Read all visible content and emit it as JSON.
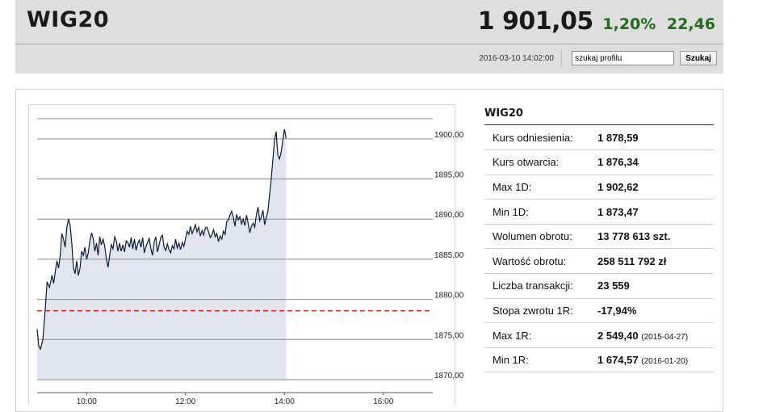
{
  "header": {
    "title": "WIG20",
    "value": "1 901,05",
    "change_pct": "1,20%",
    "change_abs": "22,46",
    "datetime": "2016-03-10 14:02:00",
    "search_placeholder": "szukaj profilu",
    "search_button": "Szukaj"
  },
  "info": {
    "title": "WIG20",
    "rows": [
      {
        "label": "Kurs odniesienia:",
        "value": "1 878,59",
        "date": ""
      },
      {
        "label": "Kurs otwarcia:",
        "value": "1 876,34",
        "date": ""
      },
      {
        "label": "Max 1D:",
        "value": "1 902,62",
        "date": ""
      },
      {
        "label": "Min 1D:",
        "value": "1 873,47",
        "date": ""
      },
      {
        "label": "Wolumen obrotu:",
        "value": "13 778 613 szt.",
        "date": ""
      },
      {
        "label": "Wartość obrotu:",
        "value": "258 511 792 zł",
        "date": ""
      },
      {
        "label": "Liczba transakcji:",
        "value": "23 559",
        "date": ""
      },
      {
        "label": "Stopa zwrotu 1R:",
        "value": "-17,94%",
        "date": ""
      },
      {
        "label": "Max 1R:",
        "value": "2 549,40",
        "date": "(2015-04-27)"
      },
      {
        "label": "Min 1R:",
        "value": "1 674,57",
        "date": "(2016-01-20)"
      }
    ]
  },
  "colors": {
    "positive": "#1f6d1a",
    "line": "#0d1b33",
    "area": "#e2e5ee",
    "reference": "#e02020"
  },
  "chart_data": {
    "type": "area",
    "x_ticks": [
      "10:00",
      "12:00",
      "14:00",
      "16:00"
    ],
    "y_ticks": [
      "1900,00",
      "1895,00",
      "1890,00",
      "1885,00",
      "1880,00",
      "1875,00",
      "1870,00"
    ],
    "ylim": [
      1870,
      1902.5
    ],
    "xlim_minutes": [
      540,
      1020
    ],
    "reference_line": 1878.59,
    "grid": true,
    "x_minutes": [
      540,
      542,
      544,
      547,
      550,
      552,
      555,
      558,
      560,
      562,
      564,
      566,
      568,
      570,
      572,
      574,
      576,
      578,
      580,
      582,
      584,
      586,
      588,
      590,
      592,
      594,
      596,
      598,
      600,
      602,
      604,
      606,
      608,
      610,
      612,
      614,
      616,
      618,
      620,
      622,
      624,
      626,
      628,
      630,
      632,
      634,
      636,
      638,
      640,
      642,
      644,
      646,
      648,
      650,
      652,
      654,
      656,
      658,
      660,
      662,
      664,
      666,
      668,
      670,
      672,
      674,
      676,
      678,
      680,
      682,
      684,
      686,
      688,
      690,
      692,
      694,
      696,
      698,
      700,
      702,
      704,
      706,
      708,
      710,
      712,
      714,
      716,
      718,
      720,
      722,
      724,
      726,
      728,
      730,
      732,
      734,
      736,
      738,
      740,
      742,
      744,
      746,
      748,
      750,
      752,
      754,
      756,
      758,
      760,
      762,
      764,
      766,
      768,
      770,
      772,
      774,
      776,
      778,
      780,
      782,
      784,
      786,
      788,
      790,
      792,
      794,
      796,
      798,
      800,
      802,
      804,
      806,
      808,
      810,
      812,
      814,
      816,
      818,
      820,
      822,
      824,
      826,
      828,
      830,
      832,
      834,
      836,
      838,
      840,
      842
    ],
    "values": [
      1876.3,
      1874.2,
      1873.8,
      1875.0,
      1879.0,
      1882.2,
      1881.5,
      1883.0,
      1882.0,
      1883.5,
      1884.8,
      1883.9,
      1885.5,
      1888.2,
      1887.5,
      1886.5,
      1889.0,
      1890.0,
      1889.3,
      1887.0,
      1884.0,
      1883.2,
      1884.8,
      1883.0,
      1883.9,
      1886.0,
      1885.5,
      1886.5,
      1885.0,
      1885.8,
      1887.3,
      1888.3,
      1887.6,
      1886.0,
      1887.0,
      1885.5,
      1887.8,
      1886.8,
      1887.5,
      1886.6,
      1885.0,
      1884.0,
      1885.5,
      1886.8,
      1886.3,
      1887.8,
      1887.3,
      1886.0,
      1887.0,
      1886.0,
      1886.8,
      1885.9,
      1887.3,
      1887.1,
      1886.5,
      1887.7,
      1886.3,
      1887.5,
      1886.1,
      1886.9,
      1887.4,
      1886.5,
      1887.7,
      1885.8,
      1886.6,
      1887.1,
      1887.6,
      1886.3,
      1885.5,
      1887.2,
      1887.8,
      1885.9,
      1886.8,
      1887.7,
      1888.0,
      1886.5,
      1886.1,
      1886.9,
      1886.2,
      1885.8,
      1886.7,
      1886.3,
      1887.5,
      1886.4,
      1887.0,
      1886.2,
      1887.1,
      1886.6,
      1887.6,
      1888.5,
      1888.1,
      1889.1,
      1888.2,
      1888.7,
      1889.3,
      1888.4,
      1889.0,
      1887.9,
      1888.6,
      1888.0,
      1888.9,
      1889.0,
      1888.4,
      1887.7,
      1888.0,
      1888.7,
      1887.8,
      1888.2,
      1887.2,
      1887.9,
      1887.5,
      1888.5,
      1888.1,
      1889.7,
      1889.9,
      1890.5,
      1891.0,
      1890.2,
      1889.1,
      1890.6,
      1889.9,
      1890.3,
      1889.4,
      1890.0,
      1889.2,
      1890.5,
      1889.5,
      1888.3,
      1889.1,
      1889.5,
      1889.0,
      1890.5,
      1891.5,
      1889.8,
      1890.3,
      1891.1,
      1889.3,
      1890.2,
      1891.0,
      1893.0,
      1895.0,
      1897.5,
      1899.8,
      1900.9,
      1898.0,
      1897.5,
      1898.3,
      1899.8,
      1901.2,
      1900.1
    ]
  }
}
